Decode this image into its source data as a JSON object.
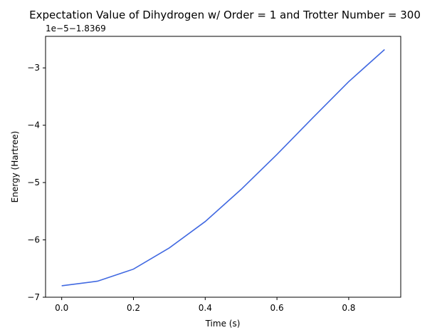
{
  "chart_data": {
    "type": "line",
    "title": "Expectation Value of Dihydrogen w/ Order = 1 and Trotter Number = 300",
    "xlabel": "Time (s)",
    "ylabel": "Energy (Hartree)",
    "y_offset_label": "1e−5−1.8369",
    "xlim": [
      -0.045,
      0.945
    ],
    "ylim": [
      -7.0,
      -2.45
    ],
    "x_ticks": [
      0.0,
      0.2,
      0.4,
      0.6,
      0.8
    ],
    "x_tick_labels": [
      "0.0",
      "0.2",
      "0.4",
      "0.6",
      "0.8"
    ],
    "y_ticks": [
      -7,
      -6,
      -5,
      -4,
      -3
    ],
    "y_tick_labels": [
      "−7",
      "−6",
      "−5",
      "−4",
      "−3"
    ],
    "grid": false,
    "line_color": "#4169e1",
    "series": [
      {
        "x": [
          0.0,
          0.1,
          0.2,
          0.3,
          0.4,
          0.5,
          0.6,
          0.7,
          0.8,
          0.9
        ],
        "values": [
          -6.8,
          -6.72,
          -6.51,
          -6.14,
          -5.68,
          -5.12,
          -4.51,
          -3.87,
          -3.24,
          -2.68
        ]
      }
    ]
  }
}
